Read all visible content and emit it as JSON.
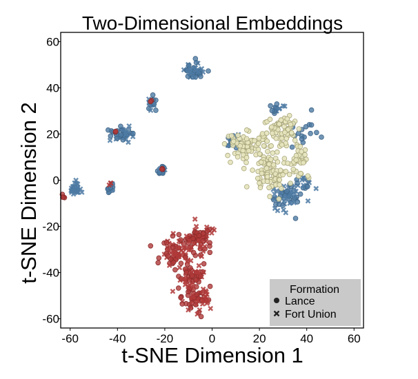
{
  "chart_data": {
    "type": "scatter",
    "title": "Two-Dimensional Embeddings",
    "xlabel": "t-SNE Dimension 1",
    "ylabel": "t-SNE Dimension 2",
    "xlim": [
      -64,
      64
    ],
    "ylim": [
      -64,
      64
    ],
    "xticks": [
      -60,
      -40,
      -20,
      0,
      20,
      40,
      60
    ],
    "yticks": [
      60,
      40,
      20,
      0,
      -20,
      -40,
      -60
    ],
    "xtick_labels": [
      "-60",
      "-40",
      "-20",
      "0",
      "20",
      "40",
      "60"
    ],
    "ytick_labels": [
      "60",
      "40",
      "20",
      "0",
      "-20",
      "-40",
      "-60"
    ],
    "grid": false,
    "legend": {
      "title": "Formation",
      "position": "bottom-right",
      "entries": [
        {
          "label": "Lance",
          "marker": "circle"
        },
        {
          "label": "Fort Union",
          "marker": "cross"
        }
      ]
    },
    "colors": {
      "blue": "#4e7aa3",
      "red": "#b03a3a",
      "cream": "#e6e4bc",
      "legend_bg": "#c9c9c9"
    },
    "clusters": [
      {
        "color": "blue",
        "marker": "mixed",
        "cx": -8,
        "cy": 47,
        "sx": 2.6,
        "sy": 1.8,
        "n": 45
      },
      {
        "color": "blue",
        "marker": "mixed",
        "cx": -25,
        "cy": 33,
        "sx": 1.0,
        "sy": 1.5,
        "n": 18
      },
      {
        "color": "blue",
        "marker": "mixed",
        "cx": -39,
        "cy": 20,
        "sx": 2.3,
        "sy": 1.8,
        "n": 40
      },
      {
        "color": "blue",
        "marker": "mixed",
        "cx": -21,
        "cy": 4,
        "sx": 0.9,
        "sy": 1.4,
        "n": 16
      },
      {
        "color": "blue",
        "marker": "cross",
        "cx": -58,
        "cy": -4,
        "sx": 1.4,
        "sy": 1.5,
        "n": 30
      },
      {
        "color": "blue",
        "marker": "mixed",
        "cx": -43,
        "cy": -3,
        "sx": 0.8,
        "sy": 1.4,
        "n": 16
      },
      {
        "color": "blue",
        "marker": "mixed",
        "cx": 27,
        "cy": 31,
        "sx": 1.5,
        "sy": 1.0,
        "n": 16
      },
      {
        "color": "blue",
        "marker": "mixed",
        "cx": 9,
        "cy": 16,
        "sx": 1.8,
        "sy": 1.6,
        "n": 22
      },
      {
        "color": "blue",
        "marker": "mixed",
        "cx": 31,
        "cy": -7,
        "sx": 3.2,
        "sy": 2.6,
        "n": 55
      },
      {
        "color": "blue",
        "marker": "mixed",
        "cx": 38,
        "cy": -2,
        "sx": 2.2,
        "sy": 2.2,
        "n": 18
      },
      {
        "color": "blue",
        "marker": "circle",
        "cx": 38,
        "cy": 20,
        "sx": 3.5,
        "sy": 4.0,
        "n": 18
      },
      {
        "color": "red",
        "marker": "mixed",
        "cx": -6,
        "cy": -25,
        "sx": 3.0,
        "sy": 3.0,
        "n": 70
      },
      {
        "color": "red",
        "marker": "mixed",
        "cx": -15,
        "cy": -32,
        "sx": 3.5,
        "sy": 3.0,
        "n": 70
      },
      {
        "color": "red",
        "marker": "mixed",
        "cx": -9,
        "cy": -42,
        "sx": 3.0,
        "sy": 4.0,
        "n": 70
      },
      {
        "color": "red",
        "marker": "mixed",
        "cx": -7,
        "cy": -52,
        "sx": 3.0,
        "sy": 3.0,
        "n": 60
      },
      {
        "color": "cream",
        "marker": "circle",
        "cx": 15,
        "cy": 15,
        "sx": 4.5,
        "sy": 3.0,
        "n": 70
      },
      {
        "color": "cream",
        "marker": "circle",
        "cx": 23,
        "cy": 6,
        "sx": 3.5,
        "sy": 5.0,
        "n": 60
      },
      {
        "color": "cream",
        "marker": "circle",
        "cx": 30,
        "cy": 22,
        "sx": 4.0,
        "sy": 3.5,
        "n": 60
      },
      {
        "color": "cream",
        "marker": "circle",
        "cx": 36,
        "cy": 10,
        "sx": 2.5,
        "sy": 5.0,
        "n": 35
      },
      {
        "color": "cream",
        "marker": "circle",
        "cx": 28,
        "cy": 2,
        "sx": 3.0,
        "sy": 3.0,
        "n": 30
      },
      {
        "color": "red",
        "marker": "circle",
        "cx": -63,
        "cy": -7,
        "sx": 0.5,
        "sy": 0.6,
        "n": 5
      },
      {
        "color": "red",
        "marker": "cross",
        "cx": -43,
        "cy": -1.5,
        "sx": 0.3,
        "sy": 0.4,
        "n": 3
      },
      {
        "color": "red",
        "marker": "circle",
        "cx": -21,
        "cy": 5,
        "sx": 0.4,
        "sy": 0.4,
        "n": 3
      },
      {
        "color": "red",
        "marker": "circle",
        "cx": -26,
        "cy": 34,
        "sx": 0.3,
        "sy": 0.3,
        "n": 2
      },
      {
        "color": "red",
        "marker": "circle",
        "cx": -41,
        "cy": 21,
        "sx": 0.3,
        "sy": 0.3,
        "n": 2
      }
    ]
  }
}
